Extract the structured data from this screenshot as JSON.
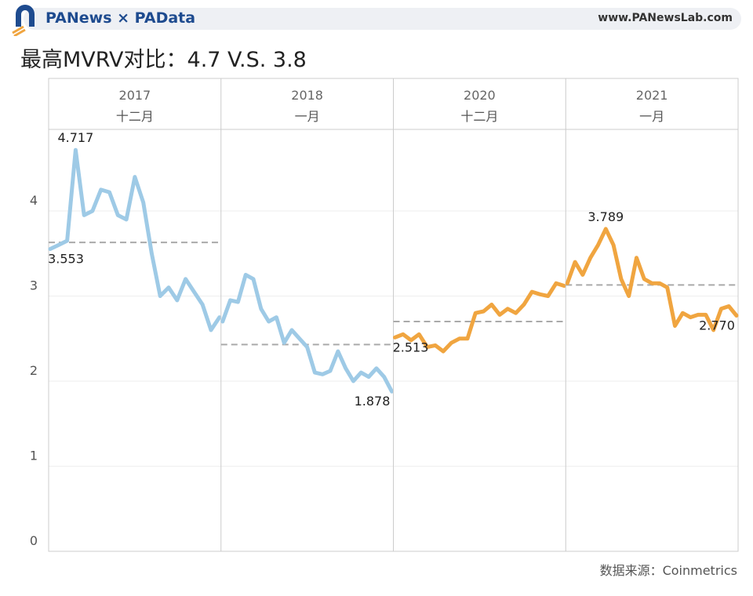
{
  "header": {
    "brand": "PANews × PAData",
    "url": "www.PANewsLab.com"
  },
  "title": "最高MVRV对比：4.7 V.S. 3.8",
  "source": "数据来源：Coinmetrics",
  "chart_data": {
    "type": "line",
    "title": "最高MVRV对比：4.7 V.S. 3.8",
    "ylim": [
      0,
      4.9
    ],
    "yticks": [
      "0",
      "1",
      "2",
      "3",
      "4"
    ],
    "grid": true,
    "panels": [
      {
        "year": "2017",
        "month": "十二月",
        "color": "#9ecae6",
        "average": 3.63,
        "labels": [
          {
            "text": "4.717",
            "index": 3
          },
          {
            "text": "3.553",
            "index": 0
          }
        ],
        "values": [
          3.553,
          3.6,
          3.65,
          4.717,
          3.95,
          4.0,
          4.25,
          4.22,
          3.95,
          3.9,
          4.4,
          4.1,
          3.5,
          3.0,
          3.1,
          2.95,
          3.2,
          3.05,
          2.9,
          2.6,
          2.75
        ]
      },
      {
        "year": "2018",
        "month": "一月",
        "color": "#9ecae6",
        "average": 2.43,
        "labels": [
          {
            "text": "1.878",
            "index": 22
          }
        ],
        "values": [
          2.7,
          2.95,
          2.93,
          3.25,
          3.2,
          2.85,
          2.7,
          2.75,
          2.45,
          2.6,
          2.5,
          2.4,
          2.1,
          2.08,
          2.12,
          2.35,
          2.15,
          2.0,
          2.1,
          2.05,
          2.15,
          2.05,
          1.878
        ]
      },
      {
        "year": "2020",
        "month": "十二月",
        "color": "#f0a540",
        "average": 2.7,
        "labels": [
          {
            "text": "2.513",
            "index": 0
          }
        ],
        "values": [
          2.513,
          2.55,
          2.48,
          2.55,
          2.4,
          2.42,
          2.35,
          2.45,
          2.5,
          2.5,
          2.8,
          2.82,
          2.9,
          2.78,
          2.85,
          2.8,
          2.9,
          3.05,
          3.02,
          3.0,
          3.15,
          3.12
        ]
      },
      {
        "year": "2021",
        "month": "一月",
        "color": "#f0a540",
        "average": 3.13,
        "labels": [
          {
            "text": "3.789",
            "index": 5
          },
          {
            "text": "2.770",
            "index": 22
          }
        ],
        "values": [
          3.15,
          3.4,
          3.25,
          3.45,
          3.6,
          3.789,
          3.6,
          3.2,
          3.0,
          3.45,
          3.2,
          3.15,
          3.15,
          3.1,
          2.65,
          2.8,
          2.75,
          2.78,
          2.78,
          2.6,
          2.85,
          2.88,
          2.77
        ]
      }
    ]
  }
}
